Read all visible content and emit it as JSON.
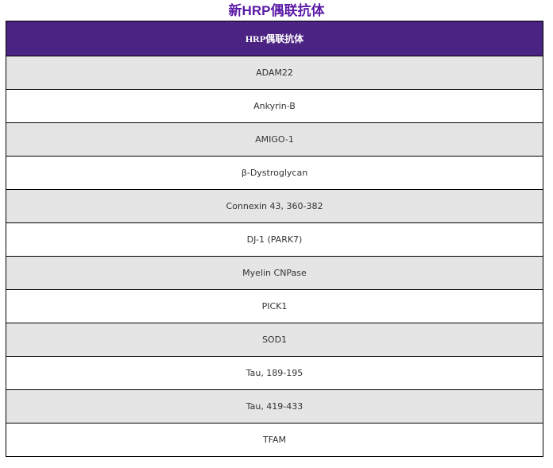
{
  "title": "新HRP偶联抗体",
  "table": {
    "header": "HRP偶联抗体",
    "rows": [
      "ADAM22",
      "Ankyrin-B",
      "AMIGO-1",
      "β-Dystroglycan",
      "Connexin 43, 360-382",
      "DJ-1 (PARK7)",
      "Myelin CNPase",
      "PICK1",
      "SOD1",
      "Tau, 189-195",
      "Tau, 419-433",
      "TFAM"
    ]
  },
  "colors": {
    "title": "#5b1aa6",
    "header_bg": "#4b2382",
    "row_alt": "#e5e5e5"
  }
}
